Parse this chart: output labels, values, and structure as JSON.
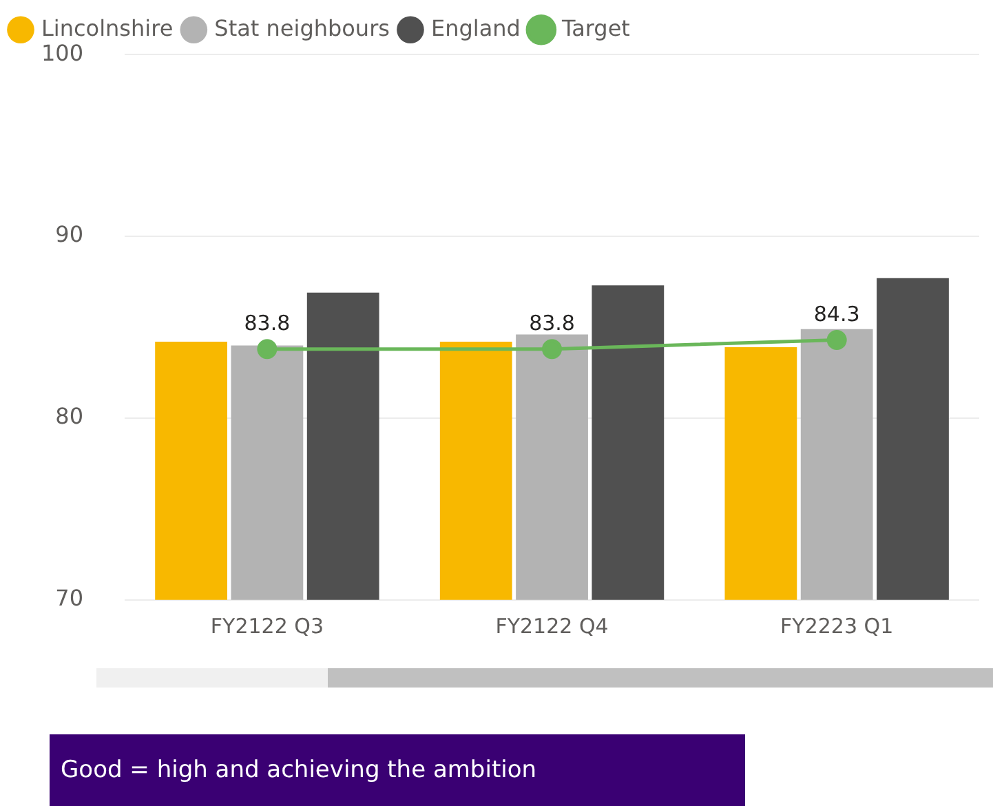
{
  "chart_data": {
    "type": "bar",
    "categories": [
      "FY2122 Q3",
      "FY2122 Q4",
      "FY2223 Q1"
    ],
    "series": [
      {
        "name": "Lincolnshire",
        "color": "#f8b800",
        "values": [
          84.2,
          84.2,
          83.9
        ]
      },
      {
        "name": "Stat neighbours",
        "color": "#b3b3b3",
        "values": [
          84.0,
          84.6,
          84.9
        ]
      },
      {
        "name": "England",
        "color": "#505050",
        "values": [
          86.9,
          87.3,
          87.7
        ]
      },
      {
        "name": "Target",
        "type": "line",
        "color": "#6ab75a",
        "values": [
          83.8,
          83.8,
          84.3
        ],
        "value_labels": [
          "83.8",
          "83.8",
          "84.3"
        ],
        "marker": "circle"
      }
    ],
    "ylim": [
      70,
      100
    ],
    "yticks": [
      70,
      80,
      90,
      100
    ],
    "grid": "y",
    "legend": "top left",
    "annotations": [
      "Good = high and achieving the ambition"
    ]
  }
}
